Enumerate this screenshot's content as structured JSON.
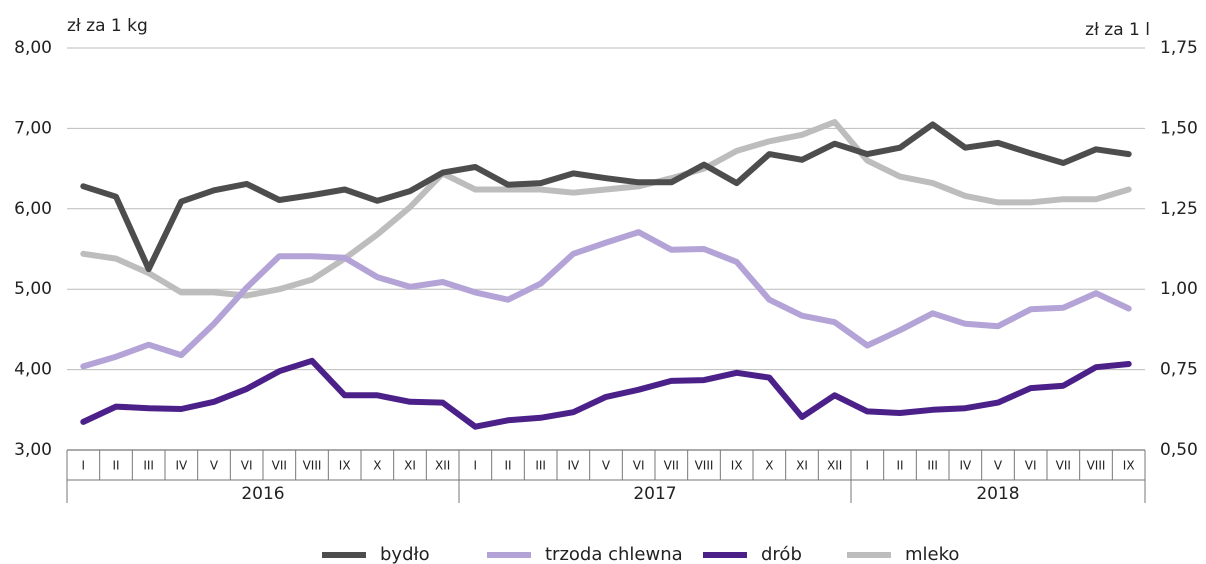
{
  "chart_data": {
    "type": "line",
    "y_label": "zł za 1 kg",
    "y2_label": "zł za 1 l",
    "category_groups": [
      {
        "label": "2016",
        "categories": [
          "I",
          "II",
          "III",
          "IV",
          "V",
          "VI",
          "VII",
          "VIII",
          "IX",
          "X",
          "XI",
          "XII"
        ]
      },
      {
        "label": "2017",
        "categories": [
          "I",
          "II",
          "III",
          "IV",
          "V",
          "VI",
          "VII",
          "VIII",
          "IX",
          "X",
          "XI",
          "XII"
        ]
      },
      {
        "label": "2018",
        "categories": [
          "I",
          "II",
          "III",
          "IV",
          "V",
          "VI",
          "VII",
          "VIII",
          "IX"
        ]
      }
    ],
    "ylim": [
      3,
      8
    ],
    "yticks": [
      {
        "value": 3,
        "label": "3,00"
      },
      {
        "value": 4,
        "label": "4,00"
      },
      {
        "value": 5,
        "label": "5,00"
      },
      {
        "value": 6,
        "label": "6,00"
      },
      {
        "value": 7,
        "label": "7,00"
      },
      {
        "value": 8,
        "label": "8,00"
      }
    ],
    "y2lim": [
      0.5,
      1.75
    ],
    "y2ticks": [
      {
        "value": 0.5,
        "label": "0,50"
      },
      {
        "value": 0.75,
        "label": "0,75"
      },
      {
        "value": 1,
        "label": "1,00"
      },
      {
        "value": 1.25,
        "label": "1,25"
      },
      {
        "value": 1.5,
        "label": "1,50"
      },
      {
        "value": 1.75,
        "label": "1,75"
      }
    ],
    "grid": true,
    "legend": "bottom",
    "series": [
      {
        "name": "bydło",
        "color": "#4d4d4d",
        "axis": "y",
        "values": [
          6.28,
          6.15,
          5.25,
          6.09,
          6.23,
          6.31,
          6.11,
          6.17,
          6.24,
          6.1,
          6.22,
          6.45,
          6.52,
          6.3,
          6.32,
          6.44,
          6.38,
          6.33,
          6.33,
          6.55,
          6.32,
          6.68,
          6.61,
          6.81,
          6.68,
          6.76,
          7.05,
          6.76,
          6.82,
          6.69,
          6.57,
          6.74,
          6.68
        ]
      },
      {
        "name": "trzoda chlewna",
        "color": "#b3a3d6",
        "axis": "y",
        "values": [
          4.04,
          4.16,
          4.31,
          4.18,
          4.57,
          5.02,
          5.41,
          5.41,
          5.39,
          5.15,
          5.03,
          5.09,
          4.96,
          4.87,
          5.07,
          5.44,
          5.58,
          5.71,
          5.49,
          5.5,
          5.34,
          4.87,
          4.67,
          4.59,
          4.3,
          4.49,
          4.7,
          4.57,
          4.54,
          4.75,
          4.77,
          4.95,
          4.76
        ]
      },
      {
        "name": "drób",
        "color": "#4b2189",
        "axis": "y",
        "values": [
          3.35,
          3.54,
          3.52,
          3.51,
          3.6,
          3.76,
          3.98,
          4.11,
          3.68,
          3.68,
          3.6,
          3.59,
          3.29,
          3.37,
          3.4,
          3.47,
          3.66,
          3.75,
          3.86,
          3.87,
          3.96,
          3.9,
          3.41,
          3.68,
          3.48,
          3.46,
          3.5,
          3.52,
          3.59,
          3.77,
          3.8,
          4.03,
          4.07
        ]
      },
      {
        "name": "mleko",
        "color": "#bdbdbd",
        "axis": "y2",
        "values": [
          1.11,
          1.095,
          1.05,
          0.99,
          0.99,
          0.98,
          1.0,
          1.03,
          1.095,
          1.17,
          1.255,
          1.36,
          1.31,
          1.31,
          1.31,
          1.3,
          1.31,
          1.32,
          1.345,
          1.375,
          1.43,
          1.46,
          1.48,
          1.52,
          1.4,
          1.35,
          1.33,
          1.29,
          1.27,
          1.27,
          1.28,
          1.28,
          1.31
        ]
      }
    ]
  }
}
